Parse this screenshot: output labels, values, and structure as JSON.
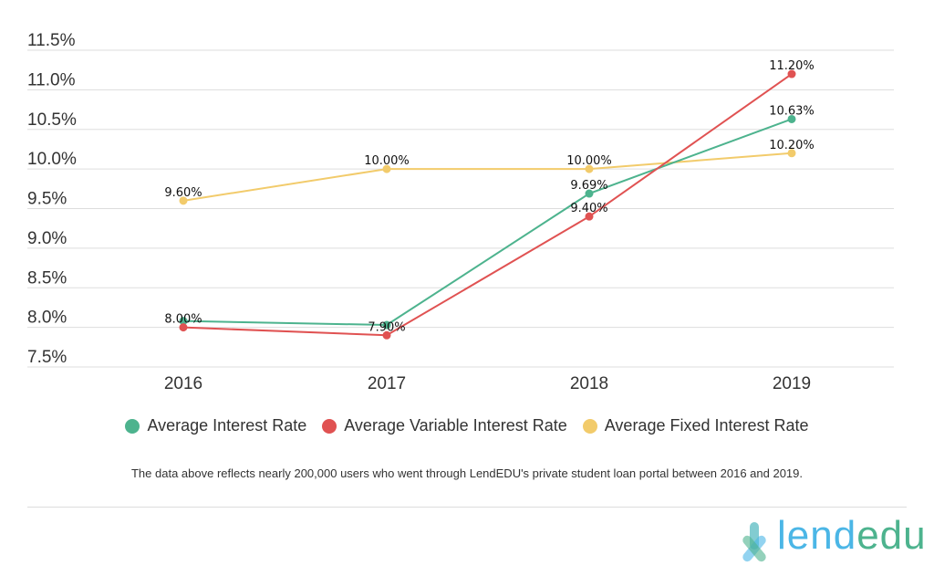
{
  "chart_data": {
    "type": "line",
    "categories": [
      "2016",
      "2017",
      "2018",
      "2019"
    ],
    "ylim": [
      7.5,
      11.5
    ],
    "yticks": [
      "11.5%",
      "11.0%",
      "10.5%",
      "10.0%",
      "9.5%",
      "9.0%",
      "8.5%",
      "8.0%",
      "7.5%"
    ],
    "ytick_values": [
      11.5,
      11.0,
      10.5,
      10.0,
      9.5,
      9.0,
      8.5,
      8.0,
      7.5
    ],
    "grid": true,
    "legend_position": "bottom",
    "series": [
      {
        "name": "Average Interest Rate",
        "color": "#4db38e",
        "values": [
          8.08,
          8.03,
          9.69,
          10.63
        ],
        "labels": [
          "",
          "",
          "9.69%",
          "10.63%"
        ]
      },
      {
        "name": "Average Variable Interest Rate",
        "color": "#e05252",
        "values": [
          8.0,
          7.9,
          9.4,
          11.2
        ],
        "labels": [
          "8.00%",
          "7.90%",
          "9.40%",
          "11.20%"
        ]
      },
      {
        "name": "Average Fixed Interest Rate",
        "color": "#f2cb6b",
        "values": [
          9.6,
          10.0,
          10.0,
          10.2
        ],
        "labels": [
          "9.60%",
          "10.00%",
          "10.00%",
          "10.20%"
        ]
      }
    ]
  },
  "note": "The data above reflects nearly 200,000 users who went through LendEDU's private student loan portal between 2016 and 2019.",
  "logo": {
    "text_part1": "lend",
    "text_part2": "edu",
    "color1": "#4bb6e6",
    "color2": "#4db38e"
  }
}
